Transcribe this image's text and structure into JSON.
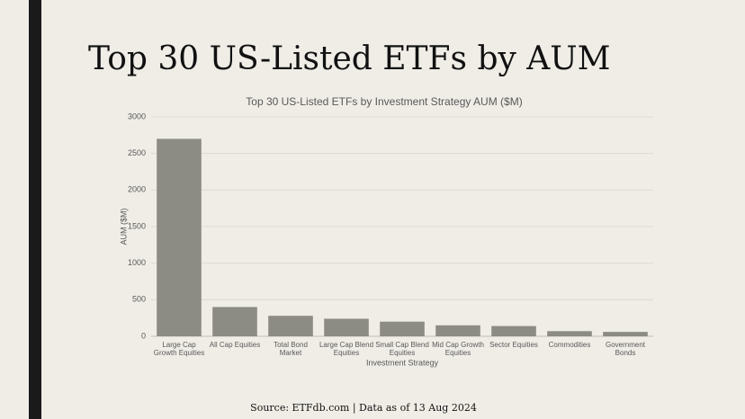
{
  "slide_title": "Top 30 US-Listed ETFs by AUM",
  "source": "Source: ETFdb.com | Data as of 13 Aug 2024",
  "chart_data": {
    "type": "bar",
    "title": "Top 30 US-Listed ETFs by Investment Strategy AUM ($M)",
    "x_label": "Investment Strategy",
    "y_label": "AUM ($M)",
    "categories": [
      "Large Cap Growth Equities",
      "All Cap Equities",
      "Total Bond Market",
      "Large Cap Blend Equities",
      "Small Cap Blend Equities",
      "Mid Cap Growth Equities",
      "Sector Equities",
      "Commodities",
      "Government Bonds"
    ],
    "values": [
      2700,
      400,
      280,
      240,
      200,
      150,
      140,
      70,
      60
    ],
    "color": "#8c8b84",
    "ylim": [
      0,
      3000
    ],
    "yticks": [
      0,
      500,
      1000,
      1500,
      2000,
      2500,
      3000
    ],
    "grid": true
  }
}
